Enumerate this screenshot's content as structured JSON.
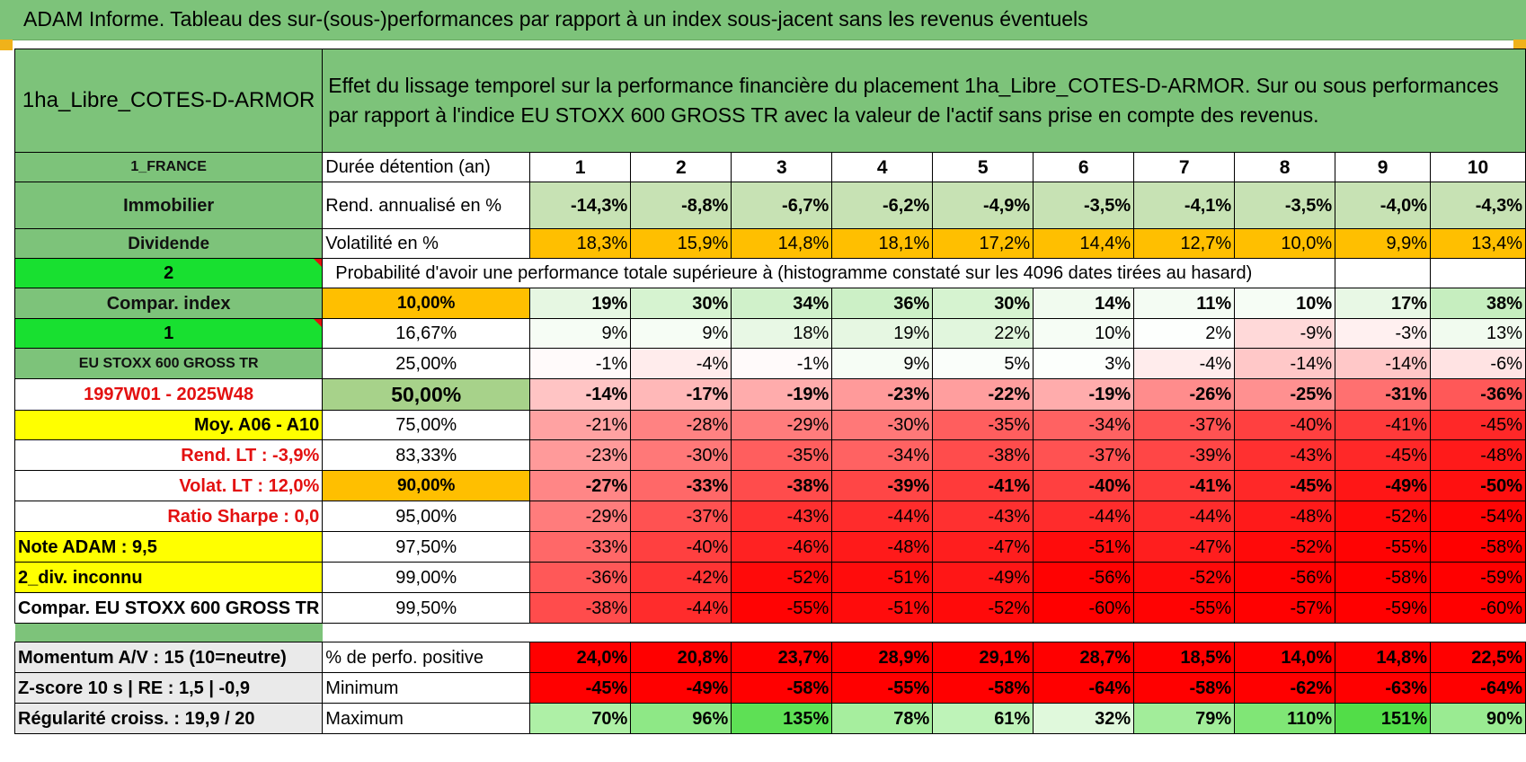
{
  "title": "ADAM Informe. Tableau des sur-(sous-)performances par rapport à un index sous-jacent sans les revenus éventuels",
  "header": {
    "fund_name": "1ha_Libre_COTES-D-ARMOR",
    "description": "Effet du lissage temporel sur la performance financière du placement 1ha_Libre_COTES-D-ARMOR. Sur ou sous performances par rapport à l'indice EU STOXX 600 GROSS TR avec la valeur de l'actif sans prise en compte des revenus."
  },
  "left_labels": {
    "country": "1_FRANCE",
    "asset": "Immobilier",
    "type": "Dividende",
    "n2": "2",
    "compar_index": "Compar. index",
    "n1": "1",
    "index_name": "EU STOXX 600 GROSS TR",
    "period": "1997W01 - 2025W48",
    "moy": "Moy. A06 - A10",
    "rend_lt": "Rend. LT :    -3,9%",
    "volat_lt": "Volat. LT :    12,0%",
    "sharpe": "Ratio Sharpe :     0,0",
    "note": "Note ADAM : 9,5",
    "div": "2_div. inconnu",
    "compar_eu": "Compar. EU STOXX 600 GROSS TR"
  },
  "durations": {
    "label": "Durée détention (an)",
    "values": [
      "1",
      "2",
      "3",
      "4",
      "5",
      "6",
      "7",
      "8",
      "9",
      "10"
    ]
  },
  "rend": {
    "label": "Rend. annualisé en %",
    "values": [
      "-14,3%",
      "-8,8%",
      "-6,7%",
      "-6,2%",
      "-4,9%",
      "-3,5%",
      "-4,1%",
      "-3,5%",
      "-4,0%",
      "-4,3%"
    ]
  },
  "vol": {
    "label": "Volatilité en %",
    "values": [
      "18,3%",
      "15,9%",
      "14,8%",
      "18,1%",
      "17,2%",
      "14,4%",
      "12,7%",
      "10,0%",
      "9,9%",
      "13,4%"
    ]
  },
  "prob_title": "Probabilité d'avoir une performance totale supérieure à (histogramme constaté sur les 4096 dates tirées au hasard)",
  "prob_rows": [
    {
      "pct": "10,00%",
      "values": [
        "19%",
        "30%",
        "34%",
        "36%",
        "30%",
        "14%",
        "11%",
        "10%",
        "17%",
        "38%"
      ],
      "colors": [
        "#e6f7e2",
        "#d6f3d0",
        "#d0f1ca",
        "#ccf0c6",
        "#d6f3d0",
        "#f1fbef",
        "#f4fcf3",
        "#f6fdf5",
        "#e8f8e5",
        "#c6eebf"
      ]
    },
    {
      "pct": "16,67%",
      "values": [
        "9%",
        "9%",
        "18%",
        "19%",
        "22%",
        "10%",
        "2%",
        "-9%",
        "-3%",
        "13%"
      ],
      "colors": [
        "#f6fdf5",
        "#f6fdf5",
        "#e8f8e5",
        "#e6f7e2",
        "#e1f6dd",
        "#f6fdf5",
        "#fdfffd",
        "#ffd9d9",
        "#fff0f0",
        "#f1fbef"
      ]
    },
    {
      "pct": "25,00%",
      "values": [
        "-1%",
        "-4%",
        "-1%",
        "9%",
        "5%",
        "3%",
        "-4%",
        "-14%",
        "-14%",
        "-6%"
      ],
      "colors": [
        "#fffafa",
        "#ffecec",
        "#fffafa",
        "#f6fdf5",
        "#fafefa",
        "#fcfffc",
        "#ffecec",
        "#ffc8c8",
        "#ffc8c8",
        "#ffe3e3"
      ]
    },
    {
      "pct": "50,00%",
      "values": [
        "-14%",
        "-17%",
        "-19%",
        "-23%",
        "-22%",
        "-19%",
        "-26%",
        "-25%",
        "-31%",
        "-36%"
      ],
      "colors": [
        "#ffc4c4",
        "#ffb8b8",
        "#ffacac",
        "#ff9a9a",
        "#ff9e9e",
        "#ffacac",
        "#ff8c8c",
        "#ff9090",
        "#ff7070",
        "#ff5858"
      ]
    },
    {
      "pct": "75,00%",
      "values": [
        "-21%",
        "-28%",
        "-29%",
        "-30%",
        "-35%",
        "-34%",
        "-37%",
        "-40%",
        "-41%",
        "-45%"
      ],
      "colors": [
        "#ffa2a2",
        "#ff8282",
        "#ff7c7c",
        "#ff7878",
        "#ff5e5e",
        "#ff6262",
        "#ff5252",
        "#ff4040",
        "#ff3a3a",
        "#ff2828"
      ]
    },
    {
      "pct": "83,33%",
      "values": [
        "-23%",
        "-30%",
        "-35%",
        "-34%",
        "-38%",
        "-37%",
        "-39%",
        "-43%",
        "-45%",
        "-48%"
      ],
      "colors": [
        "#ff9a9a",
        "#ff7878",
        "#ff5e5e",
        "#ff6262",
        "#ff4c4c",
        "#ff5252",
        "#ff4646",
        "#ff3030",
        "#ff2828",
        "#ff1a1a"
      ]
    },
    {
      "pct": "90,00%",
      "values": [
        "-27%",
        "-33%",
        "-38%",
        "-39%",
        "-41%",
        "-40%",
        "-41%",
        "-45%",
        "-49%",
        "-50%"
      ],
      "colors": [
        "#ff8686",
        "#ff6868",
        "#ff4c4c",
        "#ff4646",
        "#ff3a3a",
        "#ff4040",
        "#ff3a3a",
        "#ff2828",
        "#ff1616",
        "#ff1010"
      ]
    },
    {
      "pct": "95,00%",
      "values": [
        "-29%",
        "-37%",
        "-43%",
        "-44%",
        "-43%",
        "-44%",
        "-44%",
        "-48%",
        "-52%",
        "-54%"
      ],
      "colors": [
        "#ff7c7c",
        "#ff5252",
        "#ff3030",
        "#ff2c2c",
        "#ff3030",
        "#ff2c2c",
        "#ff2c2c",
        "#ff1a1a",
        "#ff0a0a",
        "#ff0505"
      ]
    },
    {
      "pct": "97,50%",
      "values": [
        "-33%",
        "-40%",
        "-46%",
        "-48%",
        "-47%",
        "-51%",
        "-47%",
        "-52%",
        "-55%",
        "-58%"
      ],
      "colors": [
        "#ff6868",
        "#ff4040",
        "#ff2222",
        "#ff1a1a",
        "#ff1e1e",
        "#ff0c0c",
        "#ff1e1e",
        "#ff0a0a",
        "#ff0303",
        "#ff0000"
      ]
    },
    {
      "pct": "99,00%",
      "values": [
        "-36%",
        "-42%",
        "-52%",
        "-51%",
        "-49%",
        "-56%",
        "-52%",
        "-56%",
        "-58%",
        "-59%"
      ],
      "colors": [
        "#ff5858",
        "#ff3434",
        "#ff0a0a",
        "#ff0c0c",
        "#ff1616",
        "#ff0202",
        "#ff0a0a",
        "#ff0202",
        "#ff0000",
        "#ff0000"
      ]
    },
    {
      "pct": "99,50%",
      "values": [
        "-38%",
        "-44%",
        "-55%",
        "-51%",
        "-52%",
        "-60%",
        "-55%",
        "-57%",
        "-59%",
        "-60%"
      ],
      "colors": [
        "#ff4c4c",
        "#ff2c2c",
        "#ff0303",
        "#ff0c0c",
        "#ff0a0a",
        "#ff0000",
        "#ff0303",
        "#ff0101",
        "#ff0000",
        "#ff0000"
      ]
    }
  ],
  "bottom": {
    "momentum": "Momentum A/V : 15 (10=neutre)",
    "zscore": "Z-score 10 s | RE : 1,5 | -0,9",
    "regularite": "Régularité croiss. : 19,9 / 20",
    "pos_label": "% de perfo. positive",
    "pos_values": [
      "24,0%",
      "20,8%",
      "23,7%",
      "28,9%",
      "29,1%",
      "28,7%",
      "18,5%",
      "14,0%",
      "14,8%",
      "22,5%"
    ],
    "min_label": "Minimum",
    "min_values": [
      "-45%",
      "-49%",
      "-58%",
      "-55%",
      "-58%",
      "-64%",
      "-58%",
      "-62%",
      "-63%",
      "-64%"
    ],
    "max_label": "Maximum",
    "max_values": [
      "70%",
      "96%",
      "135%",
      "78%",
      "61%",
      "32%",
      "79%",
      "110%",
      "151%",
      "90%"
    ],
    "max_colors": [
      "#aef0a6",
      "#8ee886",
      "#5ee055",
      "#a6ee9e",
      "#bef3b8",
      "#e0f9dc",
      "#a2ed9a",
      "#80e676",
      "#52dd48",
      "#9aeb92"
    ]
  },
  "colors": {
    "green_header": "#7dc37a",
    "bright_green": "#18e030",
    "yellow": "#ffff00",
    "orange": "#ffbf00",
    "red_text": "#e31010",
    "red_cell": "#ff0000"
  }
}
